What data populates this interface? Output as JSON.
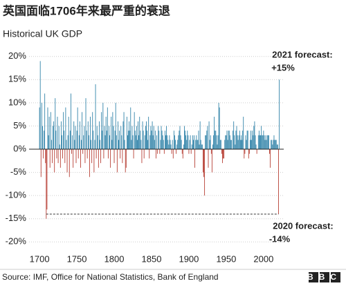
{
  "chart_data": {
    "type": "bar",
    "title": "英国面临1706年来最严重的衰退",
    "subtitle": "Historical UK GDP",
    "source": "Source: IMF, Office for National Statistics, Bank of England",
    "logo": "BBC",
    "annotations": [
      "2021 forecast:",
      "+15%",
      "2020 forecast:",
      "-14%"
    ],
    "positive_color": "#2a7fa6",
    "negative_color": "#b4372c",
    "xlim": [
      1686,
      2027
    ],
    "xticks": [
      1700,
      1750,
      1800,
      1850,
      1900,
      1950,
      2000
    ],
    "ylim": [
      -21,
      21
    ],
    "yticks": [
      {
        "value": 20,
        "label": "20%"
      },
      {
        "value": 15,
        "label": "15%"
      },
      {
        "value": 10,
        "label": "10%"
      },
      {
        "value": 5,
        "label": "5%"
      },
      {
        "value": 0,
        "label": "0%"
      },
      {
        "value": -5,
        "label": "-5%"
      },
      {
        "value": -10,
        "label": "-10%"
      },
      {
        "value": -15,
        "label": "-15%"
      },
      {
        "value": -20,
        "label": "-20%"
      }
    ],
    "grid": true,
    "x": [
      1700,
      1701,
      1702,
      1703,
      1704,
      1705,
      1706,
      1707,
      1708,
      1709,
      1710,
      1711,
      1712,
      1713,
      1714,
      1715,
      1716,
      1717,
      1718,
      1719,
      1720,
      1721,
      1722,
      1723,
      1724,
      1725,
      1726,
      1727,
      1728,
      1729,
      1730,
      1731,
      1732,
      1733,
      1734,
      1735,
      1736,
      1737,
      1738,
      1739,
      1740,
      1741,
      1742,
      1743,
      1744,
      1745,
      1746,
      1747,
      1748,
      1749,
      1750,
      1751,
      1752,
      1753,
      1754,
      1755,
      1756,
      1757,
      1758,
      1759,
      1760,
      1761,
      1762,
      1763,
      1764,
      1765,
      1766,
      1767,
      1768,
      1769,
      1770,
      1771,
      1772,
      1773,
      1774,
      1775,
      1776,
      1777,
      1778,
      1779,
      1780,
      1781,
      1782,
      1783,
      1784,
      1785,
      1786,
      1787,
      1788,
      1789,
      1790,
      1791,
      1792,
      1793,
      1794,
      1795,
      1796,
      1797,
      1798,
      1799,
      1800,
      1801,
      1802,
      1803,
      1804,
      1805,
      1806,
      1807,
      1808,
      1809,
      1810,
      1811,
      1812,
      1813,
      1814,
      1815,
      1816,
      1817,
      1818,
      1819,
      1820,
      1821,
      1822,
      1823,
      1824,
      1825,
      1826,
      1827,
      1828,
      1829,
      1830,
      1831,
      1832,
      1833,
      1834,
      1835,
      1836,
      1837,
      1838,
      1839,
      1840,
      1841,
      1842,
      1843,
      1844,
      1845,
      1846,
      1847,
      1848,
      1849,
      1850,
      1851,
      1852,
      1853,
      1854,
      1855,
      1856,
      1857,
      1858,
      1859,
      1860,
      1861,
      1862,
      1863,
      1864,
      1865,
      1866,
      1867,
      1868,
      1869,
      1870,
      1871,
      1872,
      1873,
      1874,
      1875,
      1876,
      1877,
      1878,
      1879,
      1880,
      1881,
      1882,
      1883,
      1884,
      1885,
      1886,
      1887,
      1888,
      1889,
      1890,
      1891,
      1892,
      1893,
      1894,
      1895,
      1896,
      1897,
      1898,
      1899,
      1900,
      1901,
      1902,
      1903,
      1904,
      1905,
      1906,
      1907,
      1908,
      1909,
      1910,
      1911,
      1912,
      1913,
      1914,
      1915,
      1916,
      1917,
      1918,
      1919,
      1920,
      1921,
      1922,
      1923,
      1924,
      1925,
      1926,
      1927,
      1928,
      1929,
      1930,
      1931,
      1932,
      1933,
      1934,
      1935,
      1936,
      1937,
      1938,
      1939,
      1940,
      1941,
      1942,
      1943,
      1944,
      1945,
      1946,
      1947,
      1948,
      1949,
      1950,
      1951,
      1952,
      1953,
      1954,
      1955,
      1956,
      1957,
      1958,
      1959,
      1960,
      1961,
      1962,
      1963,
      1964,
      1965,
      1966,
      1967,
      1968,
      1969,
      1970,
      1971,
      1972,
      1973,
      1974,
      1975,
      1976,
      1977,
      1978,
      1979,
      1980,
      1981,
      1982,
      1983,
      1984,
      1985,
      1986,
      1987,
      1988,
      1989,
      1990,
      1991,
      1992,
      1993,
      1994,
      1995,
      1996,
      1997,
      1998,
      1999,
      2000,
      2001,
      2002,
      2003,
      2004,
      2005,
      2006,
      2007,
      2008,
      2009,
      2010,
      2011,
      2012,
      2013,
      2014,
      2015,
      2016,
      2017,
      2018,
      2019,
      2020,
      2021
    ],
    "values": [
      9,
      19,
      -6,
      10,
      5,
      -2,
      4,
      12,
      -3,
      -15,
      -13,
      9,
      3,
      7,
      -4,
      8,
      2,
      -3,
      5,
      6,
      -5,
      11,
      4,
      -2,
      7,
      -3,
      5,
      1,
      -4,
      6,
      3,
      -2,
      8,
      4,
      -3,
      9,
      2,
      -5,
      3,
      7,
      -6,
      4,
      12,
      -1,
      3,
      -4,
      6,
      2,
      5,
      -3,
      4,
      9,
      -2,
      3,
      6,
      -4,
      2,
      8,
      -1,
      3,
      5,
      -3,
      11,
      4,
      -2,
      6,
      3,
      -6,
      7,
      2,
      -3,
      8,
      4,
      -5,
      2,
      14,
      -2,
      5,
      3,
      -4,
      6,
      2,
      -3,
      8,
      4,
      10,
      -2,
      5,
      3,
      7,
      4,
      9,
      -2,
      5,
      3,
      -4,
      7,
      2,
      8,
      5,
      -3,
      4,
      10,
      3,
      -5,
      6,
      2,
      4,
      -2,
      5,
      3,
      -3,
      6,
      8,
      2,
      -5,
      -4,
      7,
      3,
      4,
      6,
      4,
      9,
      2,
      5,
      3,
      -2,
      8,
      4,
      3,
      5,
      2,
      6,
      3,
      7,
      4,
      2,
      -3,
      6,
      4,
      -2,
      3,
      5,
      6,
      4,
      2,
      7,
      -2,
      3,
      5,
      4,
      6,
      3,
      5,
      2,
      4,
      -2,
      3,
      -1,
      5,
      4,
      -1,
      2,
      5,
      4,
      3,
      2,
      -1,
      4,
      3,
      5,
      3,
      2,
      1,
      3,
      2,
      1,
      -1,
      2,
      -2,
      4,
      3,
      2,
      -1,
      1,
      2,
      3,
      4,
      5,
      3,
      2,
      -1,
      -2,
      1,
      5,
      4,
      3,
      2,
      4,
      3,
      -1,
      2,
      3,
      -1,
      1,
      3,
      2,
      3,
      -4,
      2,
      3,
      2,
      2,
      4,
      1,
      6,
      2,
      1,
      1,
      -5,
      -6,
      -10,
      3,
      3,
      4,
      5,
      -4,
      6,
      2,
      3,
      -1,
      -5,
      1,
      3,
      7,
      4,
      4,
      3,
      1,
      3,
      10,
      9,
      2,
      2,
      -1,
      -3,
      -2,
      -2,
      2,
      3,
      3,
      4,
      2,
      4,
      4,
      3,
      2,
      2,
      0,
      4,
      6,
      3,
      1,
      4,
      5,
      3,
      2,
      3,
      4,
      2,
      3,
      2,
      4,
      7,
      -2,
      -1,
      3,
      2,
      4,
      4,
      -2,
      -1,
      2,
      4,
      2,
      4,
      3,
      5,
      6,
      3,
      1,
      -1,
      0,
      3,
      4,
      3,
      3,
      5,
      3,
      3,
      4,
      3,
      2,
      3,
      2,
      3,
      3,
      3,
      -1,
      -4,
      2,
      2,
      1,
      2,
      3,
      2,
      2,
      2,
      1,
      1,
      -14,
      15
    ]
  }
}
